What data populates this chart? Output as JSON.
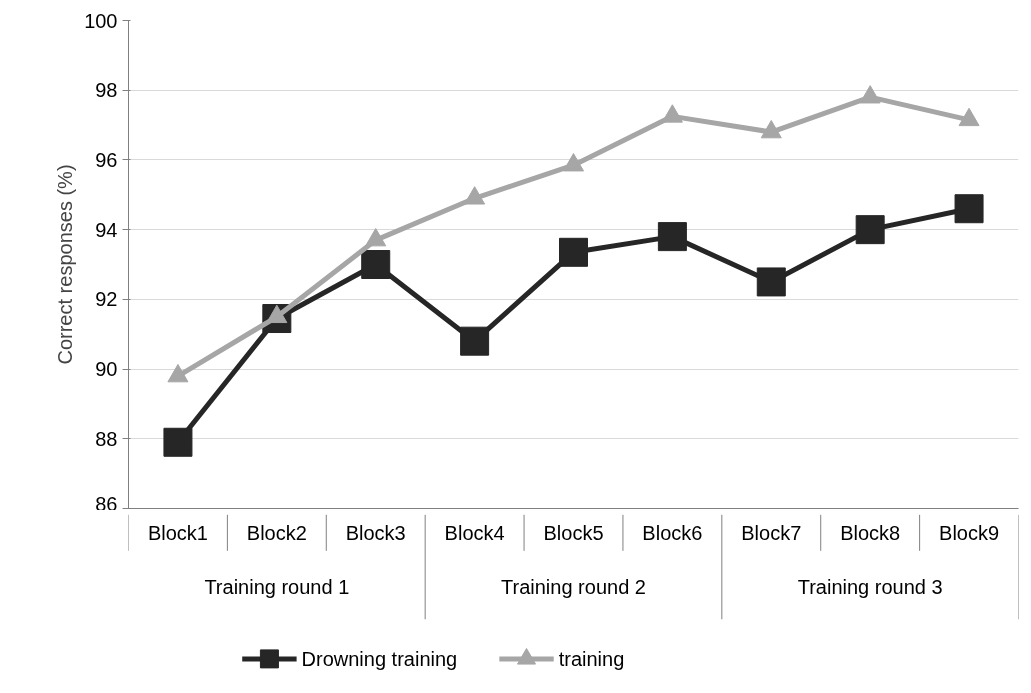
{
  "chart_data": {
    "type": "line",
    "ylabel": "Correct responses (%)",
    "categories": [
      "Block1",
      "Block2",
      "Block3",
      "Block4",
      "Block5",
      "Block6",
      "Block7",
      "Block8",
      "Block9"
    ],
    "annotations": [
      "Training round 1",
      "Training round 2",
      "Training round 3"
    ],
    "series": [
      {
        "name": "Drowning training",
        "color": "#262626",
        "marker": "square",
        "values": [
          87.9,
          91.45,
          93.0,
          90.8,
          93.35,
          93.8,
          92.5,
          94.0,
          94.6
        ]
      },
      {
        "name": "training",
        "color": "#a6a6a6",
        "marker": "triangle",
        "values": [
          89.8,
          91.5,
          93.7,
          94.9,
          95.85,
          97.25,
          96.8,
          97.8,
          97.15
        ]
      }
    ],
    "ylim": [
      86,
      100
    ],
    "yticks": [
      86,
      88,
      90,
      92,
      94,
      96,
      98,
      100
    ],
    "grid": "y",
    "legend": "bottom"
  }
}
